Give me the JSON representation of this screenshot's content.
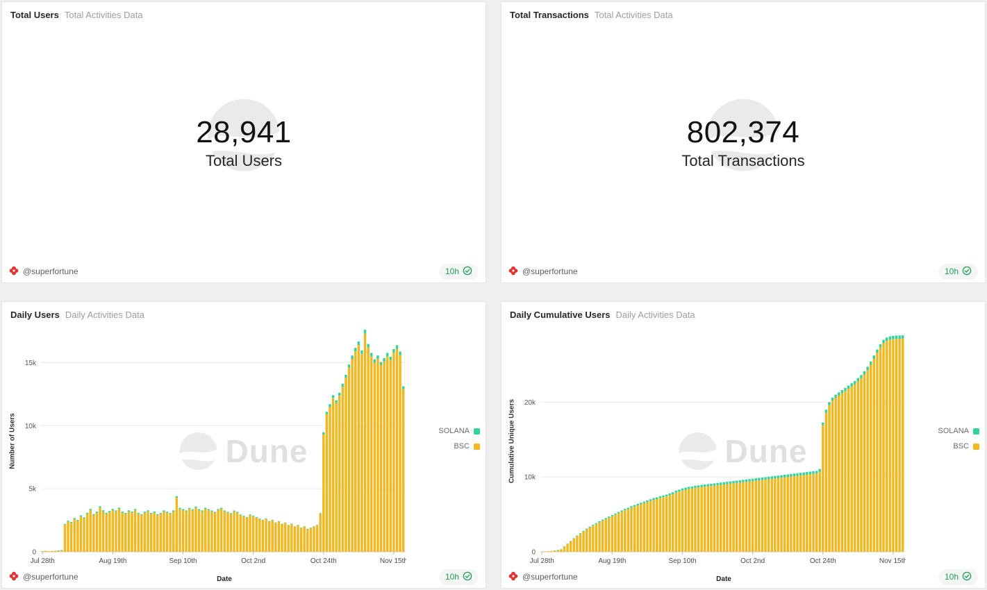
{
  "app": {
    "watermark_text": "Dune"
  },
  "colors": {
    "solana": "#34d399",
    "bsc": "#f3b71f",
    "freshness_green": "#1f9d56",
    "logo_red": "#e0312e"
  },
  "panels": {
    "total_users": {
      "title": "Total Users",
      "subtitle": "Total Activities Data",
      "value": "28,941",
      "label": "Total Users",
      "author": "@superfortune",
      "freshness": "10h"
    },
    "total_transactions": {
      "title": "Total Transactions",
      "subtitle": "Total Activities Data",
      "value": "802,374",
      "label": "Total Transactions",
      "author": "@superfortune",
      "freshness": "10h"
    },
    "daily_users": {
      "title": "Daily Users",
      "subtitle": "Daily Activities Data",
      "author": "@superfortune",
      "freshness": "10h"
    },
    "daily_cumulative_users": {
      "title": "Daily Cumulative Users",
      "subtitle": "Daily Activities Data",
      "author": "@superfortune",
      "freshness": "10h"
    }
  },
  "chart_data": [
    {
      "type": "bar",
      "stacked": true,
      "title": "Daily Users",
      "xlabel": "Date",
      "ylabel": "Number of Users",
      "ymax": 17500,
      "yticks": [
        {
          "value": 0,
          "label": "0"
        },
        {
          "value": 5000,
          "label": "5k"
        },
        {
          "value": 10000,
          "label": "10k"
        },
        {
          "value": 15000,
          "label": "15k"
        }
      ],
      "xticks": [
        {
          "index": 0,
          "label": "Jul 28th"
        },
        {
          "index": 22,
          "label": "Aug 19th"
        },
        {
          "index": 44,
          "label": "Sep 10th"
        },
        {
          "index": 66,
          "label": "Oct 2nd"
        },
        {
          "index": 88,
          "label": "Oct 24th"
        },
        {
          "index": 110,
          "label": "Nov 15th"
        }
      ],
      "legend": [
        {
          "label": "SOLANA",
          "color": "#34d399"
        },
        {
          "label": "BSC",
          "color": "#f3b71f"
        }
      ],
      "series": [
        {
          "name": "BSC",
          "color": "#f3b71f",
          "values": [
            60,
            80,
            50,
            70,
            90,
            110,
            130,
            2150,
            2400,
            2300,
            2600,
            2450,
            2800,
            2650,
            3000,
            3300,
            2900,
            3100,
            3500,
            3200,
            3000,
            3150,
            3300,
            3200,
            3400,
            3100,
            3000,
            3200,
            3100,
            3300,
            3000,
            2900,
            3100,
            3200,
            3000,
            3100,
            2900,
            3000,
            3200,
            3100,
            3000,
            3200,
            4300,
            3400,
            3300,
            3200,
            3400,
            3300,
            3500,
            3300,
            3200,
            3400,
            3300,
            3200,
            3100,
            3300,
            3400,
            3200,
            3100,
            3000,
            3200,
            3100,
            2900,
            2800,
            2700,
            2900,
            2800,
            2700,
            2600,
            2500,
            2600,
            2400,
            2500,
            2300,
            2400,
            2200,
            2300,
            2100,
            2200,
            2000,
            2100,
            1900,
            2000,
            1800,
            1900,
            2000,
            2100,
            3000,
            9300,
            10900,
            11500,
            12200,
            11800,
            12400,
            13100,
            13800,
            14600,
            15300,
            15900,
            16400,
            15700,
            17300,
            16200,
            15500,
            15000,
            15300,
            14800,
            15100,
            15500,
            15200,
            15800,
            16100,
            15600,
            12900
          ]
        },
        {
          "name": "SOLANA",
          "color": "#34d399",
          "values": [
            0,
            0,
            0,
            0,
            0,
            5,
            10,
            60,
            70,
            65,
            80,
            75,
            85,
            80,
            90,
            95,
            85,
            90,
            100,
            95,
            90,
            85,
            90,
            85,
            95,
            90,
            85,
            90,
            85,
            95,
            80,
            75,
            85,
            90,
            80,
            85,
            75,
            80,
            85,
            80,
            75,
            85,
            110,
            90,
            85,
            80,
            85,
            80,
            90,
            85,
            80,
            85,
            80,
            75,
            70,
            80,
            85,
            75,
            70,
            65,
            75,
            70,
            60,
            55,
            50,
            60,
            55,
            50,
            45,
            40,
            45,
            35,
            40,
            30,
            35,
            25,
            30,
            25,
            30,
            20,
            25,
            15,
            20,
            10,
            15,
            20,
            25,
            60,
            180,
            200,
            210,
            220,
            210,
            220,
            230,
            240,
            250,
            260,
            270,
            280,
            270,
            300,
            280,
            270,
            260,
            265,
            255,
            260,
            270,
            265,
            275,
            280,
            270,
            220
          ]
        }
      ]
    },
    {
      "type": "bar",
      "stacked": true,
      "title": "Daily Cumulative Users",
      "xlabel": "Date",
      "ylabel": "Cumulative Unique Users",
      "ymax": 29500,
      "yticks": [
        {
          "value": 0,
          "label": "0"
        },
        {
          "value": 10000,
          "label": "10k"
        },
        {
          "value": 20000,
          "label": "20k"
        }
      ],
      "xticks": [
        {
          "index": 0,
          "label": "Jul 28th"
        },
        {
          "index": 22,
          "label": "Aug 19th"
        },
        {
          "index": 44,
          "label": "Sep 10th"
        },
        {
          "index": 66,
          "label": "Oct 2nd"
        },
        {
          "index": 88,
          "label": "Oct 24th"
        },
        {
          "index": 110,
          "label": "Nov 15th"
        }
      ],
      "legend": [
        {
          "label": "SOLANA",
          "color": "#34d399"
        },
        {
          "label": "BSC",
          "color": "#f3b71f"
        }
      ],
      "series": [
        {
          "name": "BSC",
          "color": "#f3b71f",
          "values": [
            30,
            60,
            90,
            130,
            180,
            240,
            320,
            700,
            1050,
            1400,
            1750,
            2100,
            2400,
            2700,
            3000,
            3250,
            3500,
            3700,
            3950,
            4150,
            4350,
            4550,
            4750,
            4950,
            5150,
            5350,
            5550,
            5700,
            5900,
            6050,
            6200,
            6350,
            6500,
            6650,
            6800,
            6950,
            7050,
            7200,
            7300,
            7400,
            7550,
            7700,
            7900,
            8050,
            8200,
            8300,
            8400,
            8450,
            8550,
            8600,
            8650,
            8700,
            8750,
            8800,
            8850,
            8900,
            8950,
            9000,
            9050,
            9100,
            9150,
            9200,
            9250,
            9300,
            9350,
            9400,
            9450,
            9500,
            9550,
            9600,
            9650,
            9700,
            9750,
            9800,
            9850,
            9900,
            9950,
            10000,
            10050,
            10100,
            10150,
            10200,
            10250,
            10300,
            10350,
            10400,
            10450,
            10700,
            16900,
            18600,
            19600,
            20200,
            20600,
            20900,
            21200,
            21500,
            21800,
            22100,
            22400,
            22800,
            23200,
            23700,
            24300,
            25000,
            25800,
            26600,
            27300,
            27900,
            28200,
            28350,
            28420,
            28460,
            28480,
            28500
          ]
        },
        {
          "name": "SOLANA",
          "color": "#34d399",
          "values": [
            0,
            0,
            0,
            0,
            0,
            2,
            5,
            20,
            35,
            50,
            65,
            80,
            90,
            100,
            110,
            118,
            125,
            132,
            140,
            147,
            153,
            160,
            166,
            172,
            178,
            184,
            190,
            195,
            200,
            205,
            210,
            215,
            220,
            225,
            230,
            235,
            239,
            243,
            247,
            251,
            255,
            259,
            264,
            268,
            272,
            276,
            280,
            283,
            286,
            289,
            292,
            295,
            298,
            300,
            302,
            304,
            306,
            308,
            310,
            312,
            314,
            316,
            318,
            320,
            322,
            324,
            326,
            328,
            330,
            332,
            334,
            336,
            338,
            340,
            342,
            344,
            346,
            348,
            350,
            352,
            354,
            356,
            358,
            360,
            362,
            364,
            366,
            370,
            385,
            395,
            400,
            404,
            408,
            411,
            414,
            417,
            420,
            423,
            426,
            429,
            432,
            434,
            436,
            437,
            438,
            439,
            440,
            440,
            440,
            441,
            441,
            441,
            441,
            441
          ]
        }
      ]
    }
  ]
}
